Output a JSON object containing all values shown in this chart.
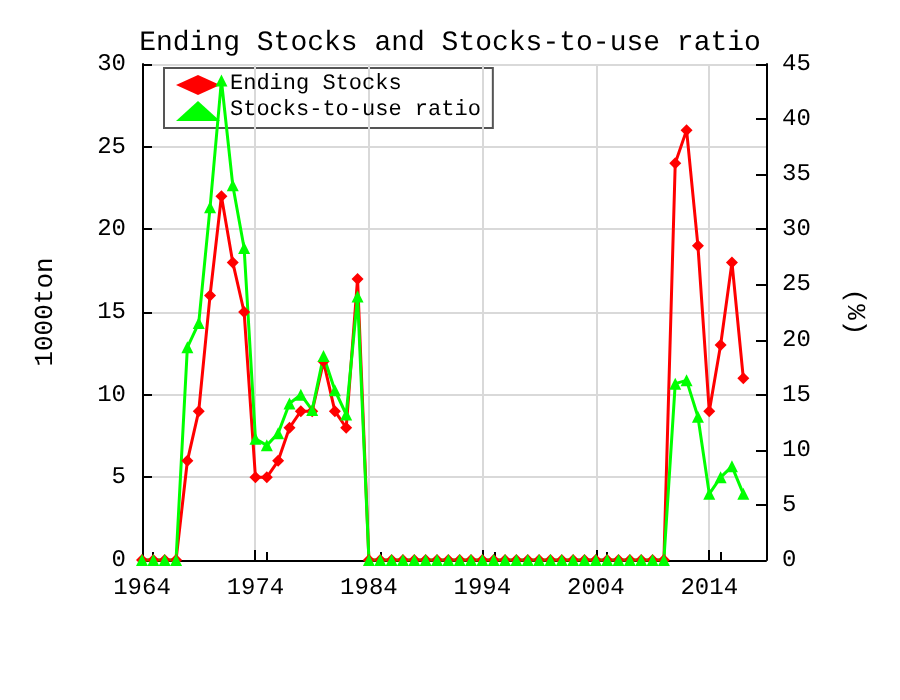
{
  "chart_data": {
    "type": "line",
    "title": "Ending Stocks and Stocks-to-use ratio",
    "ylabel": "1000ton",
    "y2label": "(%)",
    "x": [
      1964,
      1965,
      1966,
      1967,
      1968,
      1969,
      1970,
      1971,
      1972,
      1973,
      1974,
      1975,
      1976,
      1977,
      1978,
      1979,
      1980,
      1981,
      1982,
      1983,
      1984,
      1985,
      1986,
      1987,
      1988,
      1989,
      1990,
      1991,
      1992,
      1993,
      1994,
      1995,
      1996,
      1997,
      1998,
      1999,
      2000,
      2001,
      2002,
      2003,
      2004,
      2005,
      2006,
      2007,
      2008,
      2009,
      2010,
      2011,
      2012,
      2013,
      2014,
      2015,
      2016,
      2017
    ],
    "series": [
      {
        "name": "Ending Stocks",
        "color": "#ff0000",
        "marker": "diamond",
        "values": [
          0,
          0,
          0,
          0,
          6,
          9,
          16,
          22,
          18,
          15,
          5,
          5,
          6,
          8,
          9,
          9,
          12,
          9,
          8,
          17,
          0,
          0,
          0,
          0,
          0,
          0,
          0,
          0,
          0,
          0,
          0,
          0,
          0,
          0,
          0,
          0,
          0,
          0,
          0,
          0,
          0,
          0,
          0,
          0,
          0,
          0,
          0,
          24,
          26,
          19,
          9,
          13,
          18,
          11
        ]
      },
      {
        "name": "Stocks-to-use ratio",
        "color": "#00ff00",
        "marker": "triangle",
        "axis": "y2",
        "values": [
          0,
          0,
          0,
          0,
          19.3,
          21.5,
          32,
          43.5,
          34,
          28.3,
          11,
          10.4,
          11.5,
          14.2,
          15,
          13.6,
          18.5,
          15.4,
          13.2,
          23.9,
          0,
          0,
          0,
          0,
          0,
          0,
          0,
          0,
          0,
          0,
          0,
          0,
          0,
          0,
          0,
          0,
          0,
          0,
          0,
          0,
          0,
          0,
          0,
          0,
          0,
          0,
          0,
          16,
          16.3,
          13,
          6,
          7.5,
          8.5,
          6
        ]
      }
    ],
    "xlim": [
      1964,
      2019
    ],
    "xticks": [
      1964,
      1974,
      1984,
      1994,
      2004,
      2014
    ],
    "ylim": [
      0,
      30
    ],
    "yticks": [
      0,
      5,
      10,
      15,
      20,
      25,
      30
    ],
    "y2lim": [
      0,
      45
    ],
    "y2ticks": [
      0,
      5,
      10,
      15,
      20,
      25,
      30,
      35,
      40,
      45
    ],
    "grid": true,
    "legend": "top left"
  }
}
